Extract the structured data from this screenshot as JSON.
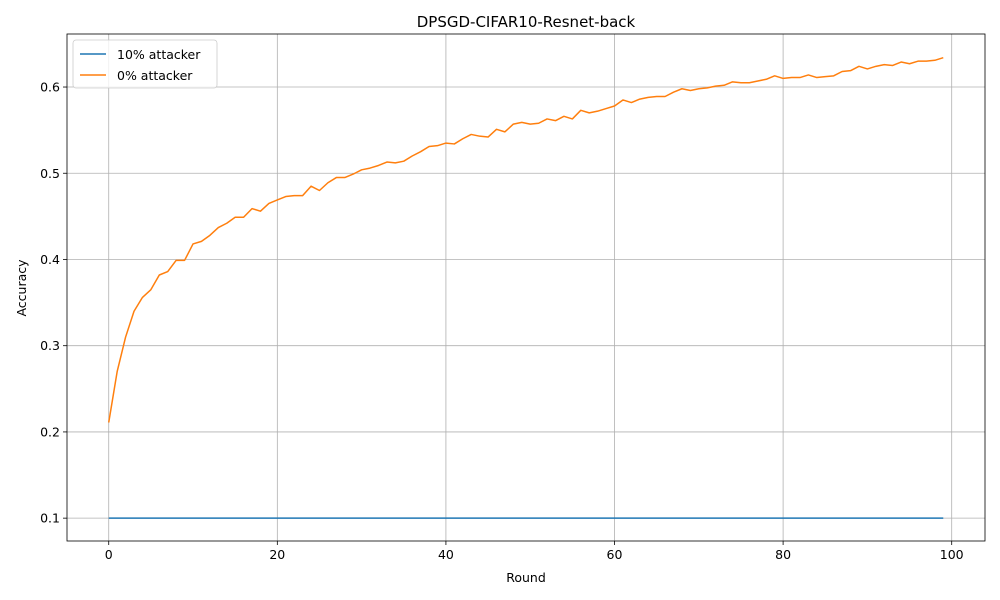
{
  "chart_data": {
    "type": "line",
    "title": "DPSGD-CIFAR10-Resnet-back",
    "xlabel": "Round",
    "ylabel": "Accuracy",
    "xlim": [
      -4.95,
      103.95
    ],
    "ylim": [
      0.0735,
      0.6615
    ],
    "grid": true,
    "legend_position": "top-left",
    "xticks": [
      0,
      20,
      40,
      60,
      80,
      100
    ],
    "xtick_labels": [
      "0",
      "20",
      "40",
      "60",
      "80",
      "100"
    ],
    "yticks": [
      0.1,
      0.2,
      0.3,
      0.4,
      0.5,
      0.6
    ],
    "ytick_labels": [
      "0.1",
      "0.2",
      "0.3",
      "0.4",
      "0.5",
      "0.6"
    ],
    "x": [
      0,
      1,
      2,
      3,
      4,
      5,
      6,
      7,
      8,
      9,
      10,
      11,
      12,
      13,
      14,
      15,
      16,
      17,
      18,
      19,
      20,
      21,
      22,
      23,
      24,
      25,
      26,
      27,
      28,
      29,
      30,
      31,
      32,
      33,
      34,
      35,
      36,
      37,
      38,
      39,
      40,
      41,
      42,
      43,
      44,
      45,
      46,
      47,
      48,
      49,
      50,
      51,
      52,
      53,
      54,
      55,
      56,
      57,
      58,
      59,
      60,
      61,
      62,
      63,
      64,
      65,
      66,
      67,
      68,
      69,
      70,
      71,
      72,
      73,
      74,
      75,
      76,
      77,
      78,
      79,
      80,
      81,
      82,
      83,
      84,
      85,
      86,
      87,
      88,
      89,
      90,
      91,
      92,
      93,
      94,
      95,
      96,
      97,
      98,
      99
    ],
    "series": [
      {
        "name": "10% attacker",
        "color": "#1f77b4",
        "values": [
          0.1,
          0.1,
          0.1,
          0.1,
          0.1,
          0.1,
          0.1,
          0.1,
          0.1,
          0.1,
          0.1,
          0.1,
          0.1,
          0.1,
          0.1,
          0.1,
          0.1,
          0.1,
          0.1,
          0.1,
          0.1,
          0.1,
          0.1,
          0.1,
          0.1,
          0.1,
          0.1,
          0.1,
          0.1,
          0.1,
          0.1,
          0.1,
          0.1,
          0.1,
          0.1,
          0.1,
          0.1,
          0.1,
          0.1,
          0.1,
          0.1,
          0.1,
          0.1,
          0.1,
          0.1,
          0.1,
          0.1,
          0.1,
          0.1,
          0.1,
          0.1,
          0.1,
          0.1,
          0.1,
          0.1,
          0.1,
          0.1,
          0.1,
          0.1,
          0.1,
          0.1,
          0.1,
          0.1,
          0.1,
          0.1,
          0.1,
          0.1,
          0.1,
          0.1,
          0.1,
          0.1,
          0.1,
          0.1,
          0.1,
          0.1,
          0.1,
          0.1,
          0.1,
          0.1,
          0.1,
          0.1,
          0.1,
          0.1,
          0.1,
          0.1,
          0.1,
          0.1,
          0.1,
          0.1,
          0.1,
          0.1,
          0.1,
          0.1,
          0.1,
          0.1,
          0.1,
          0.1,
          0.1,
          0.1,
          0.1
        ]
      },
      {
        "name": "0% attacker",
        "color": "#ff7f0e",
        "values": [
          0.211,
          0.27,
          0.31,
          0.34,
          0.356,
          0.365,
          0.382,
          0.386,
          0.399,
          0.399,
          0.418,
          0.421,
          0.428,
          0.437,
          0.442,
          0.449,
          0.449,
          0.459,
          0.456,
          0.465,
          0.469,
          0.473,
          0.474,
          0.474,
          0.485,
          0.48,
          0.489,
          0.495,
          0.495,
          0.499,
          0.504,
          0.506,
          0.509,
          0.513,
          0.512,
          0.514,
          0.52,
          0.525,
          0.531,
          0.532,
          0.535,
          0.534,
          0.54,
          0.545,
          0.543,
          0.542,
          0.551,
          0.548,
          0.557,
          0.559,
          0.557,
          0.558,
          0.563,
          0.561,
          0.566,
          0.563,
          0.573,
          0.57,
          0.572,
          0.575,
          0.578,
          0.585,
          0.582,
          0.586,
          0.588,
          0.589,
          0.589,
          0.594,
          0.598,
          0.596,
          0.598,
          0.599,
          0.601,
          0.602,
          0.606,
          0.605,
          0.605,
          0.607,
          0.609,
          0.613,
          0.61,
          0.611,
          0.611,
          0.614,
          0.611,
          0.612,
          0.613,
          0.618,
          0.619,
          0.624,
          0.621,
          0.624,
          0.626,
          0.625,
          0.629,
          0.627,
          0.63,
          0.63,
          0.631,
          0.634
        ]
      }
    ]
  }
}
